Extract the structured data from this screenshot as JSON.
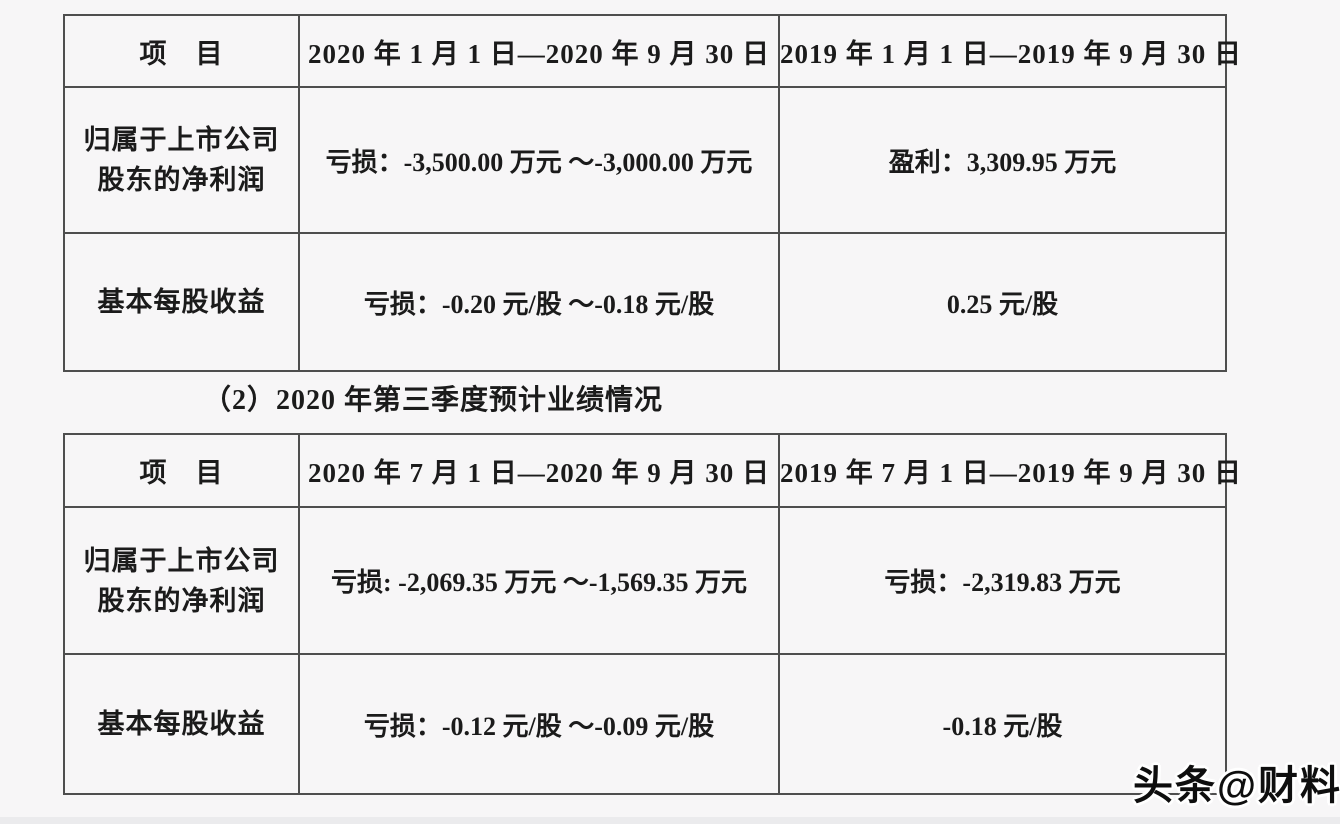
{
  "page": {
    "background": "#f7f6f7",
    "border_color": "#4e4e4e",
    "text_color": "#1b1b1b"
  },
  "heading": {
    "text": "（2）2020 年第三季度预计业绩情况"
  },
  "watermark": {
    "text": "头条@财料"
  },
  "table_ytd": {
    "headers": {
      "item": "项　目",
      "period_2020": "2020 年 1 月 1 日—2020 年 9 月 30 日",
      "period_2019": "2019 年 1 月 1 日—2019 年 9 月 30 日"
    },
    "rows": [
      {
        "label_lines": [
          "归属于上市公司",
          "股东的净利润"
        ],
        "period_2020": "亏损：-3,500.00 万元 ～-3,000.00 万元",
        "period_2019": "盈利：3,309.95 万元"
      },
      {
        "label_lines": [
          "基本每股收益"
        ],
        "period_2020": "亏损：-0.20 元/股 ～-0.18 元/股",
        "period_2019": "0.25 元/股"
      }
    ]
  },
  "table_q3": {
    "headers": {
      "item": "项　目",
      "period_2020": "2020 年 7 月 1 日—2020 年 9 月 30 日",
      "period_2019": "2019 年 7 月 1 日—2019 年 9 月 30 日"
    },
    "rows": [
      {
        "label_lines": [
          "归属于上市公司",
          "股东的净利润"
        ],
        "period_2020": "亏损: -2,069.35 万元 ～-1,569.35 万元",
        "period_2019": "亏损：-2,319.83 万元"
      },
      {
        "label_lines": [
          "基本每股收益"
        ],
        "period_2020": "亏损：-0.12 元/股 ～-0.09 元/股",
        "period_2019": "-0.18 元/股"
      }
    ]
  }
}
